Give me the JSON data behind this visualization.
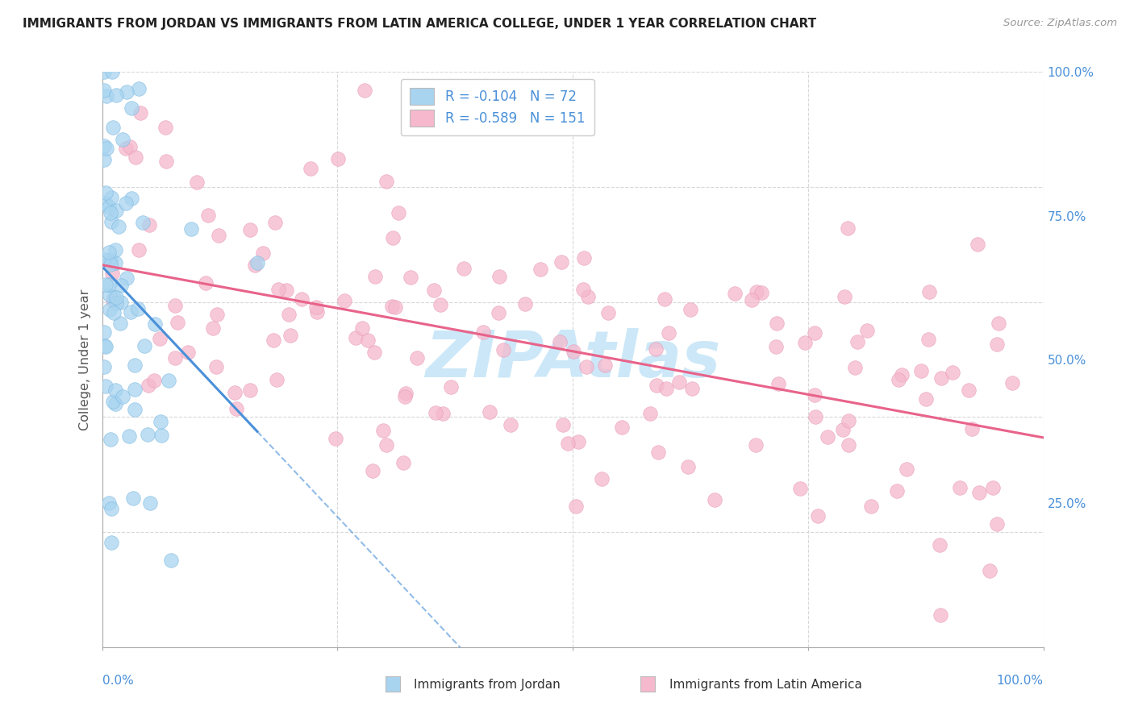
{
  "title": "IMMIGRANTS FROM JORDAN VS IMMIGRANTS FROM LATIN AMERICA COLLEGE, UNDER 1 YEAR CORRELATION CHART",
  "source": "Source: ZipAtlas.com",
  "ylabel": "College, Under 1 year",
  "legend_label1": "Immigrants from Jordan",
  "legend_label2": "Immigrants from Latin America",
  "R1": -0.104,
  "N1": 72,
  "R2": -0.589,
  "N2": 151,
  "color_jordan_fill": "#a8d4f0",
  "color_jordan_edge": "#7ab8e0",
  "color_jordan_line": "#4a90d9",
  "color_latin_fill": "#f5b8cc",
  "color_latin_edge": "#e898b8",
  "color_latin_line": "#e8638a",
  "watermark": "ZIPAtlas",
  "watermark_color": "#cce8f8",
  "background": "#ffffff",
  "grid_color": "#d8d8d8",
  "tick_color": "#4a90d9",
  "title_color": "#222222",
  "axis_label_color": "#555555",
  "legend_text_color": "#4a90d9"
}
